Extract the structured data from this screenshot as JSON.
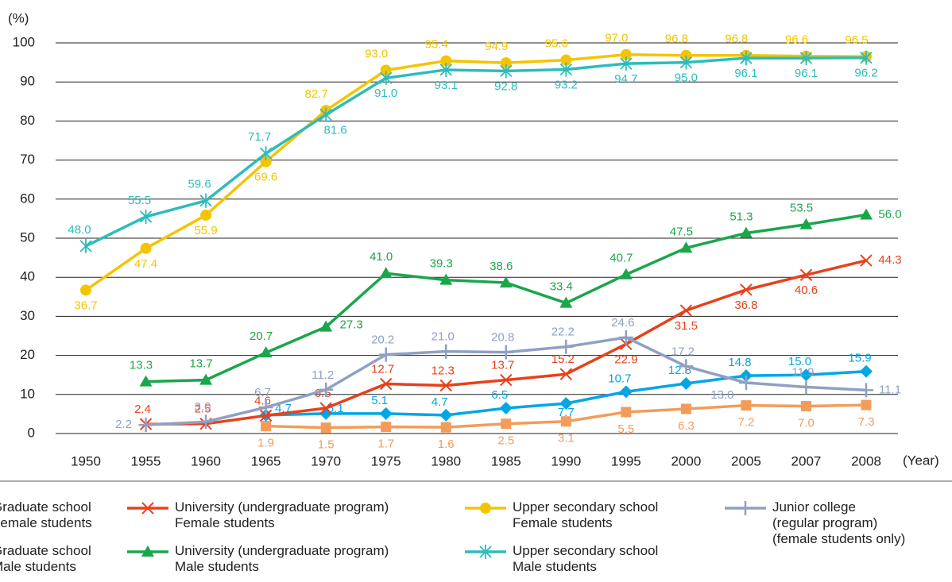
{
  "chart_data": {
    "type": "line",
    "y_axis_label": "(%)",
    "x_axis_label": "(Year)",
    "categories": [
      "1950",
      "1955",
      "1960",
      "1965",
      "1970",
      "1975",
      "1980",
      "1985",
      "1990",
      "1995",
      "2000",
      "2005",
      "2007",
      "2008"
    ],
    "ylim": [
      0,
      100
    ],
    "yticks": [
      0,
      10,
      20,
      30,
      40,
      50,
      60,
      70,
      80,
      90,
      100
    ],
    "grid": true,
    "series": [
      {
        "name": "Graduate school\nFemale students",
        "color": "#f39c5a",
        "marker": "square",
        "values": [
          null,
          null,
          null,
          1.9,
          1.5,
          1.7,
          1.6,
          2.5,
          3.1,
          5.5,
          6.3,
          7.2,
          7.0,
          7.3
        ],
        "value_labels": [
          null,
          null,
          null,
          "1.9",
          "1.5",
          "1.7",
          "1.6",
          "2.5",
          "3.1",
          "5.5",
          "6.3",
          "7.2",
          "7.0",
          "7.3"
        ]
      },
      {
        "name": "Graduate school\nMale students",
        "color": "#00a6e6",
        "marker": "diamond",
        "values": [
          null,
          null,
          null,
          4.7,
          5.1,
          5.1,
          4.7,
          6.5,
          7.7,
          10.7,
          12.8,
          14.8,
          15.0,
          15.9
        ],
        "value_labels": [
          null,
          null,
          null,
          "4.7",
          "5.1",
          "5.1",
          "4.7",
          "6.5",
          "7.7",
          "10.7",
          "12.8",
          "14.8",
          "15.0",
          "15.9"
        ]
      },
      {
        "name": "University (undergraduate program)\nFemale students",
        "color": "#e8401c",
        "marker": "x",
        "values": [
          null,
          2.4,
          2.5,
          4.6,
          6.5,
          12.7,
          12.3,
          13.7,
          15.2,
          22.9,
          31.5,
          36.8,
          40.6,
          44.3
        ],
        "value_labels": [
          null,
          "2.4",
          "2.5",
          "4.6",
          "6.5",
          "12.7",
          "12.3",
          "13.7",
          "15.2",
          "22.9",
          "31.5",
          "36.8",
          "40.6",
          "44.3"
        ]
      },
      {
        "name": "University (undergraduate program)\nMale students",
        "color": "#1aa64a",
        "marker": "triangle",
        "values": [
          null,
          13.3,
          13.7,
          20.7,
          27.3,
          41.0,
          39.3,
          38.6,
          33.4,
          40.7,
          47.5,
          51.3,
          53.5,
          56.0
        ],
        "value_labels": [
          null,
          "13.3",
          "13.7",
          "20.7",
          "27.3",
          "41.0",
          "39.3",
          "38.6",
          "33.4",
          "40.7",
          "47.5",
          "51.3",
          "53.5",
          "56.0"
        ]
      },
      {
        "name": "Upper secondary school\nFemale students",
        "color": "#f5c400",
        "marker": "circle",
        "values": [
          36.7,
          47.4,
          55.9,
          69.6,
          82.7,
          93.0,
          95.4,
          94.9,
          95.6,
          97.0,
          96.8,
          96.8,
          96.6,
          96.5
        ],
        "value_labels": [
          "36.7",
          "47.4",
          "55.9",
          "69.6",
          "82.7",
          "93.0",
          "95.4",
          "94.9",
          "95.6",
          "97.0",
          "96.8",
          "96.8",
          "96.6",
          "96.5"
        ]
      },
      {
        "name": "Upper secondary school\nMale students",
        "color": "#2cbcbc",
        "marker": "asterisk",
        "values": [
          48.0,
          55.5,
          59.6,
          71.7,
          81.6,
          91.0,
          93.1,
          92.8,
          93.2,
          94.7,
          95.0,
          96.1,
          96.1,
          96.2
        ],
        "value_labels": [
          "48.0",
          "55.5",
          "59.6",
          "71.7",
          "81.6",
          "91.0",
          "93.1",
          "92.8",
          "93.2",
          "94.7",
          "95.0",
          "96.1",
          "96.1",
          "96.2"
        ]
      },
      {
        "name": "Junior college\n(regular program)\n(female students only)",
        "color": "#8fa0c4",
        "marker": "plus",
        "values": [
          null,
          2.2,
          3.0,
          6.7,
          11.2,
          20.2,
          21.0,
          20.8,
          22.2,
          24.6,
          17.2,
          13.0,
          11.9,
          11.1
        ],
        "value_labels": [
          null,
          "2.2",
          "3.0",
          "6.7",
          "11.2",
          "20.2",
          "21.0",
          "20.8",
          "22.2",
          "24.6",
          "17.2",
          "13.0",
          "11.9",
          "11.1"
        ]
      }
    ]
  }
}
